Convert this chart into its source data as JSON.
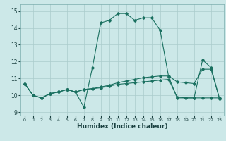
{
  "xlabel": "Humidex (Indice chaleur)",
  "xlim": [
    -0.5,
    23.5
  ],
  "ylim": [
    8.8,
    15.4
  ],
  "yticks": [
    9,
    10,
    11,
    12,
    13,
    14,
    15
  ],
  "xticks": [
    0,
    1,
    2,
    3,
    4,
    5,
    6,
    7,
    8,
    9,
    10,
    11,
    12,
    13,
    14,
    15,
    16,
    17,
    18,
    19,
    20,
    21,
    22,
    23
  ],
  "bg_color": "#cce8e8",
  "grid_color": "#aacccc",
  "line_color": "#1a7060",
  "lines": [
    [
      10.7,
      10.0,
      9.85,
      10.1,
      10.2,
      10.35,
      10.2,
      9.3,
      11.65,
      14.3,
      14.45,
      14.85,
      14.85,
      14.45,
      14.6,
      14.6,
      13.85,
      11.1,
      9.85,
      9.85,
      9.85,
      12.1,
      11.65,
      9.8
    ],
    [
      10.7,
      10.0,
      9.85,
      10.1,
      10.2,
      10.35,
      10.2,
      10.35,
      10.4,
      10.5,
      10.6,
      10.75,
      10.85,
      10.95,
      11.05,
      11.1,
      11.15,
      11.15,
      10.8,
      10.75,
      10.7,
      11.55,
      11.55,
      9.8
    ],
    [
      10.7,
      10.0,
      9.85,
      10.1,
      10.2,
      10.35,
      10.2,
      10.35,
      10.4,
      10.45,
      10.55,
      10.65,
      10.7,
      10.75,
      10.8,
      10.85,
      10.9,
      10.95,
      9.9,
      9.85,
      9.85,
      9.85,
      9.85,
      9.85
    ]
  ]
}
